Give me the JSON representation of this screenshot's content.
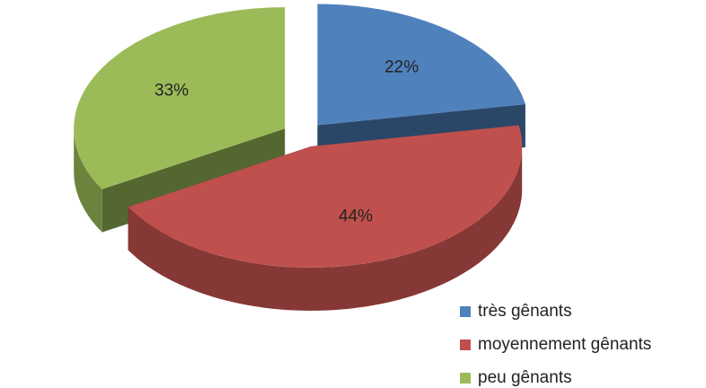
{
  "chart_data": {
    "type": "pie",
    "categories": [
      "très gênants",
      "moyennement gênants",
      "peu gênants"
    ],
    "values": [
      22,
      44,
      33
    ],
    "value_labels": [
      "22%",
      "44%",
      "33%"
    ],
    "colors": [
      "#4f81bd",
      "#c0504d",
      "#9bbb59"
    ],
    "legend": "bottom-right"
  }
}
